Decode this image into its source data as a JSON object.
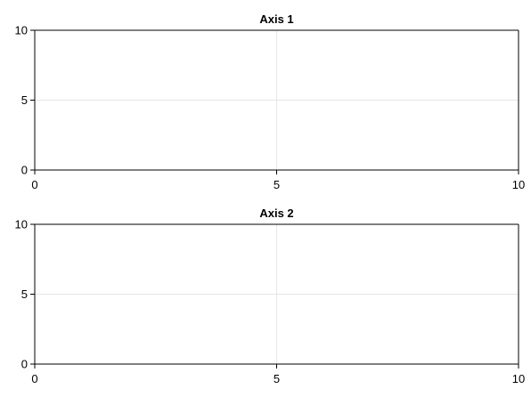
{
  "chart_data": [
    {
      "type": "line",
      "title": "Axis 1",
      "xlabel": "",
      "ylabel": "",
      "xlim": [
        0,
        10
      ],
      "ylim": [
        0,
        10
      ],
      "xticks": [
        0,
        5,
        10
      ],
      "yticks": [
        0,
        5,
        10
      ],
      "x_tick_labels": [
        "0",
        "5",
        "10"
      ],
      "y_tick_labels": [
        "0",
        "5",
        "10"
      ],
      "grid": true,
      "series": []
    },
    {
      "type": "line",
      "title": "Axis 2",
      "xlabel": "",
      "ylabel": "",
      "xlim": [
        0,
        10
      ],
      "ylim": [
        0,
        10
      ],
      "xticks": [
        0,
        5,
        10
      ],
      "yticks": [
        0,
        5,
        10
      ],
      "x_tick_labels": [
        "0",
        "5",
        "10"
      ],
      "y_tick_labels": [
        "0",
        "5",
        "10"
      ],
      "grid": true,
      "series": []
    }
  ],
  "colors": {
    "axis": "#000000",
    "grid": "#e6e6e6",
    "background": "#ffffff"
  }
}
